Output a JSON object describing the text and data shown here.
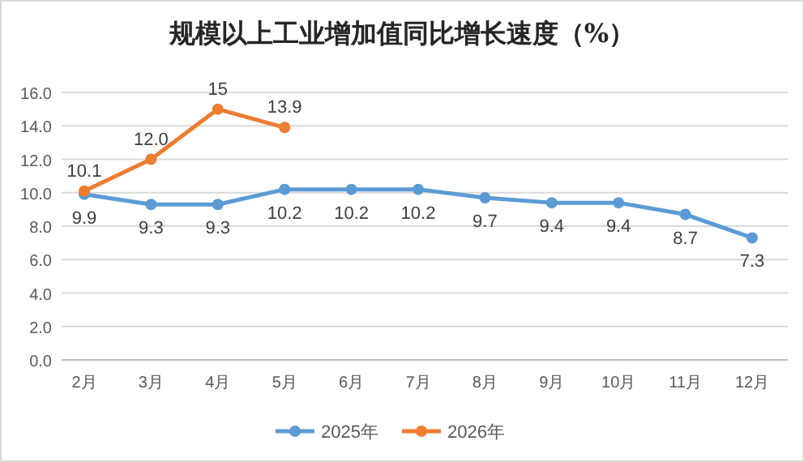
{
  "chart_data": {
    "type": "line",
    "title": "规模以上工业增加值同比增长速度（%）",
    "categories": [
      "2月",
      "3月",
      "4月",
      "5月",
      "6月",
      "7月",
      "8月",
      "9月",
      "10月",
      "11月",
      "12月"
    ],
    "series": [
      {
        "name": "2025年",
        "color": "#5b9bd5",
        "values": [
          9.9,
          9.3,
          9.3,
          10.2,
          10.2,
          10.2,
          9.7,
          9.4,
          9.4,
          8.7,
          7.3
        ],
        "value_labels": [
          "9.9",
          "9.3",
          "9.3",
          "10.2",
          "10.2",
          "10.2",
          "9.7",
          "9.4",
          "9.4",
          "8.7",
          "7.3"
        ]
      },
      {
        "name": "2026年",
        "color": "#ed7d31",
        "values": [
          10.1,
          12.0,
          15,
          13.9,
          null,
          null,
          null,
          null,
          null,
          null,
          null
        ],
        "value_labels": [
          "10.1",
          "12.0",
          "15",
          "13.9",
          null,
          null,
          null,
          null,
          null,
          null,
          null
        ]
      }
    ],
    "ylim": [
      0,
      16
    ],
    "yticks": [
      {
        "value": 0,
        "label": "0.0"
      },
      {
        "value": 2,
        "label": "2.0"
      },
      {
        "value": 4,
        "label": "4.0"
      },
      {
        "value": 6,
        "label": "6.0"
      },
      {
        "value": 8,
        "label": "8.0"
      },
      {
        "value": 10,
        "label": "10.0"
      },
      {
        "value": 12,
        "label": "12.0"
      },
      {
        "value": 14,
        "label": "14.0"
      },
      {
        "value": 16,
        "label": "16.0"
      }
    ],
    "grid": "y",
    "legend": "bottom",
    "marker": "circle",
    "line_style": "solid"
  }
}
